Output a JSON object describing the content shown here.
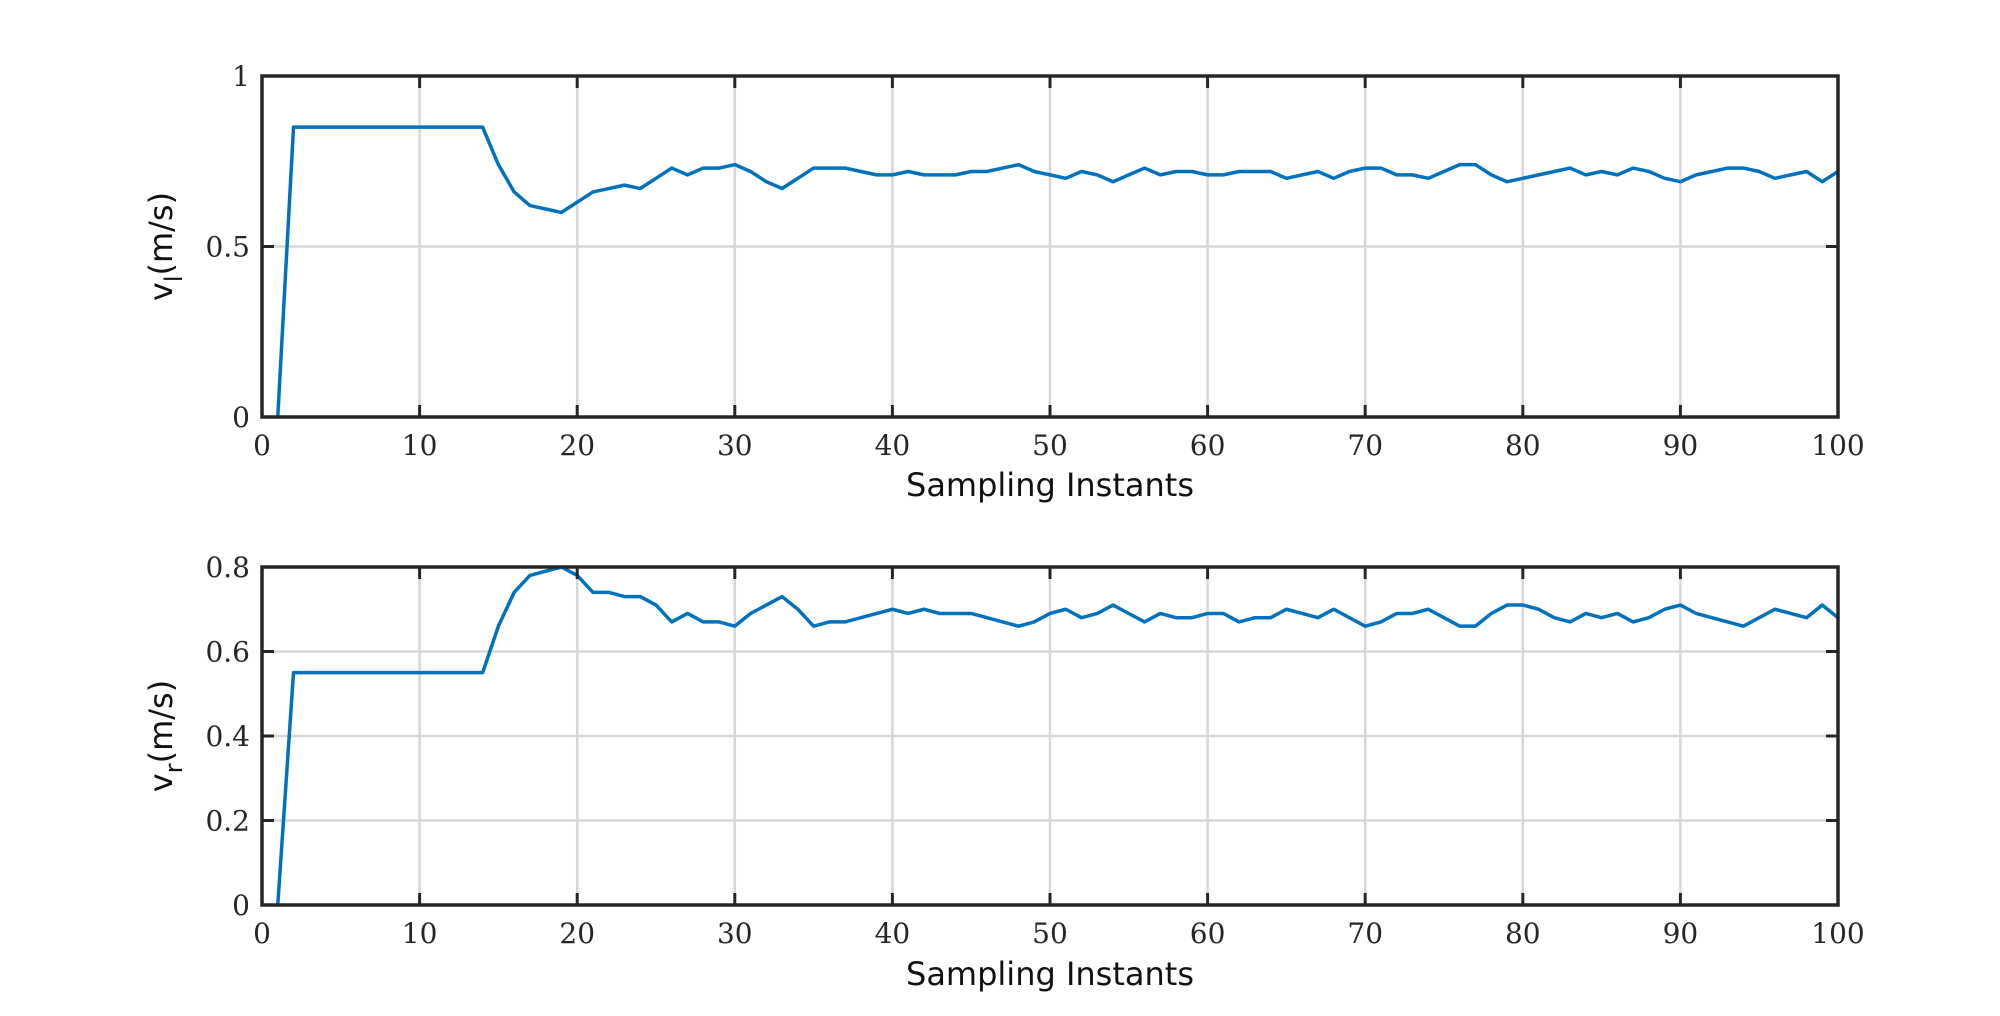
{
  "chart_data": [
    {
      "type": "line",
      "xlabel": "Sampling Instants",
      "ylabel_main": "v",
      "ylabel_sub": "l",
      "ylabel_unit": "(m/s)",
      "xlim": [
        0,
        100
      ],
      "ylim": [
        0,
        1
      ],
      "xticks": [
        0,
        10,
        20,
        30,
        40,
        50,
        60,
        70,
        80,
        90,
        100
      ],
      "xtick_labels": [
        "0",
        "10",
        "20",
        "30",
        "40",
        "50",
        "60",
        "70",
        "80",
        "90",
        "100"
      ],
      "yticks": [
        0,
        0.5,
        1
      ],
      "ytick_labels": [
        "0",
        "0.5",
        "1"
      ],
      "grid": true,
      "color": "#0072BD",
      "series": [
        {
          "x": [
            1,
            2,
            3,
            4,
            5,
            6,
            7,
            8,
            9,
            10,
            11,
            12,
            13,
            14,
            15,
            16,
            17,
            18,
            19,
            20,
            21,
            22,
            23,
            24,
            25,
            26,
            27,
            28,
            29,
            30,
            31,
            32,
            33,
            34,
            35,
            36,
            37,
            38,
            39,
            40,
            41,
            42,
            43,
            44,
            45,
            46,
            47,
            48,
            49,
            50,
            51,
            52,
            53,
            54,
            55,
            56,
            57,
            58,
            59,
            60,
            61,
            62,
            63,
            64,
            65,
            66,
            67,
            68,
            69,
            70,
            71,
            72,
            73,
            74,
            75,
            76,
            77,
            78,
            79,
            80,
            81,
            82,
            83,
            84,
            85,
            86,
            87,
            88,
            89,
            90,
            91,
            92,
            93,
            94,
            95,
            96,
            97,
            98,
            99,
            100
          ],
          "y": [
            0,
            0.85,
            0.85,
            0.85,
            0.85,
            0.85,
            0.85,
            0.85,
            0.85,
            0.85,
            0.85,
            0.85,
            0.85,
            0.85,
            0.74,
            0.66,
            0.62,
            0.61,
            0.6,
            0.63,
            0.66,
            0.67,
            0.68,
            0.67,
            0.7,
            0.73,
            0.71,
            0.73,
            0.73,
            0.74,
            0.72,
            0.69,
            0.67,
            0.7,
            0.73,
            0.73,
            0.73,
            0.72,
            0.71,
            0.71,
            0.72,
            0.71,
            0.71,
            0.71,
            0.72,
            0.72,
            0.73,
            0.74,
            0.72,
            0.71,
            0.7,
            0.72,
            0.71,
            0.69,
            0.71,
            0.73,
            0.71,
            0.72,
            0.72,
            0.71,
            0.71,
            0.72,
            0.72,
            0.72,
            0.7,
            0.71,
            0.72,
            0.7,
            0.72,
            0.73,
            0.73,
            0.71,
            0.71,
            0.7,
            0.72,
            0.74,
            0.74,
            0.71,
            0.69,
            0.7,
            0.71,
            0.72,
            0.73,
            0.71,
            0.72,
            0.71,
            0.73,
            0.72,
            0.7,
            0.69,
            0.71,
            0.72,
            0.73,
            0.73,
            0.72,
            0.7,
            0.71,
            0.72,
            0.69,
            0.72
          ]
        }
      ]
    },
    {
      "type": "line",
      "xlabel": "Sampling Instants",
      "ylabel_main": "v",
      "ylabel_sub": "r",
      "ylabel_unit": "(m/s)",
      "xlim": [
        0,
        100
      ],
      "ylim": [
        0,
        0.8
      ],
      "xticks": [
        0,
        10,
        20,
        30,
        40,
        50,
        60,
        70,
        80,
        90,
        100
      ],
      "xtick_labels": [
        "0",
        "10",
        "20",
        "30",
        "40",
        "50",
        "60",
        "70",
        "80",
        "90",
        "100"
      ],
      "yticks": [
        0,
        0.2,
        0.4,
        0.6,
        0.8
      ],
      "ytick_labels": [
        "0",
        "0.2",
        "0.4",
        "0.6",
        "0.8"
      ],
      "grid": true,
      "color": "#0072BD",
      "series": [
        {
          "x": [
            1,
            2,
            3,
            4,
            5,
            6,
            7,
            8,
            9,
            10,
            11,
            12,
            13,
            14,
            15,
            16,
            17,
            18,
            19,
            20,
            21,
            22,
            23,
            24,
            25,
            26,
            27,
            28,
            29,
            30,
            31,
            32,
            33,
            34,
            35,
            36,
            37,
            38,
            39,
            40,
            41,
            42,
            43,
            44,
            45,
            46,
            47,
            48,
            49,
            50,
            51,
            52,
            53,
            54,
            55,
            56,
            57,
            58,
            59,
            60,
            61,
            62,
            63,
            64,
            65,
            66,
            67,
            68,
            69,
            70,
            71,
            72,
            73,
            74,
            75,
            76,
            77,
            78,
            79,
            80,
            81,
            82,
            83,
            84,
            85,
            86,
            87,
            88,
            89,
            90,
            91,
            92,
            93,
            94,
            95,
            96,
            97,
            98,
            99,
            100
          ],
          "y": [
            0,
            0.55,
            0.55,
            0.55,
            0.55,
            0.55,
            0.55,
            0.55,
            0.55,
            0.55,
            0.55,
            0.55,
            0.55,
            0.55,
            0.66,
            0.74,
            0.78,
            0.79,
            0.8,
            0.78,
            0.74,
            0.74,
            0.73,
            0.73,
            0.71,
            0.67,
            0.69,
            0.67,
            0.67,
            0.66,
            0.69,
            0.71,
            0.73,
            0.7,
            0.66,
            0.67,
            0.67,
            0.68,
            0.69,
            0.7,
            0.69,
            0.7,
            0.69,
            0.69,
            0.69,
            0.68,
            0.67,
            0.66,
            0.67,
            0.69,
            0.7,
            0.68,
            0.69,
            0.71,
            0.69,
            0.67,
            0.69,
            0.68,
            0.68,
            0.69,
            0.69,
            0.67,
            0.68,
            0.68,
            0.7,
            0.69,
            0.68,
            0.7,
            0.68,
            0.66,
            0.67,
            0.69,
            0.69,
            0.7,
            0.68,
            0.66,
            0.66,
            0.69,
            0.71,
            0.71,
            0.7,
            0.68,
            0.67,
            0.69,
            0.68,
            0.69,
            0.67,
            0.68,
            0.7,
            0.71,
            0.69,
            0.68,
            0.67,
            0.66,
            0.68,
            0.7,
            0.69,
            0.68,
            0.71,
            0.68
          ]
        }
      ]
    }
  ]
}
